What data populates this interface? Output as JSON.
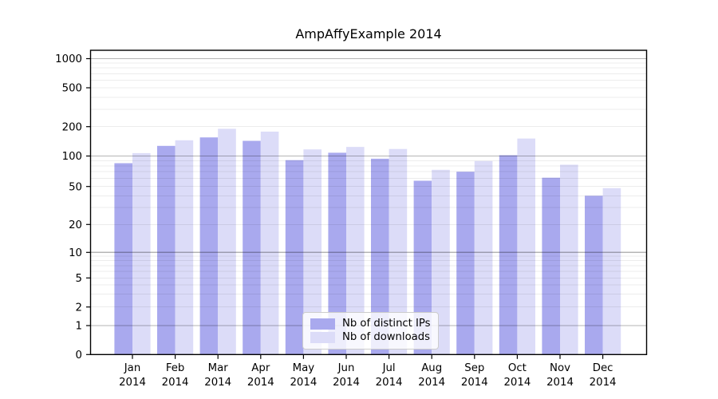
{
  "chart_data": {
    "type": "bar",
    "title": "AmpAffyExample 2014",
    "categories": [
      "Jan 2014",
      "Feb 2014",
      "Mar 2014",
      "Apr 2014",
      "May 2014",
      "Jun 2014",
      "Jul 2014",
      "Aug 2014",
      "Sep 2014",
      "Oct 2014",
      "Nov 2014",
      "Dec 2014"
    ],
    "series": [
      {
        "name": "Nb of distinct IPs",
        "color": "#a9a9ee",
        "values": [
          85,
          127,
          155,
          143,
          91,
          108,
          94,
          57,
          70,
          102,
          61,
          40
        ]
      },
      {
        "name": "Nb of downloads",
        "color": "#dcdcf8",
        "values": [
          107,
          145,
          190,
          178,
          117,
          124,
          118,
          73,
          89,
          151,
          82,
          48
        ]
      }
    ],
    "yticks": [
      0,
      1,
      2,
      5,
      10,
      20,
      50,
      100,
      200,
      500,
      1000
    ],
    "ylim": [
      0,
      1300
    ],
    "yscale": "asinh (log-like, linear near 0)",
    "xlabel": "",
    "ylabel": "",
    "grid": "horizontal; dark lines at decades, light minor lines at 2-9 per decade",
    "legend_position": "lower center",
    "colors": {
      "major_gridline": "#b4b4b4",
      "minor_gridline": "#ebebeb",
      "frame": "#000000",
      "background": "#ffffff"
    }
  }
}
